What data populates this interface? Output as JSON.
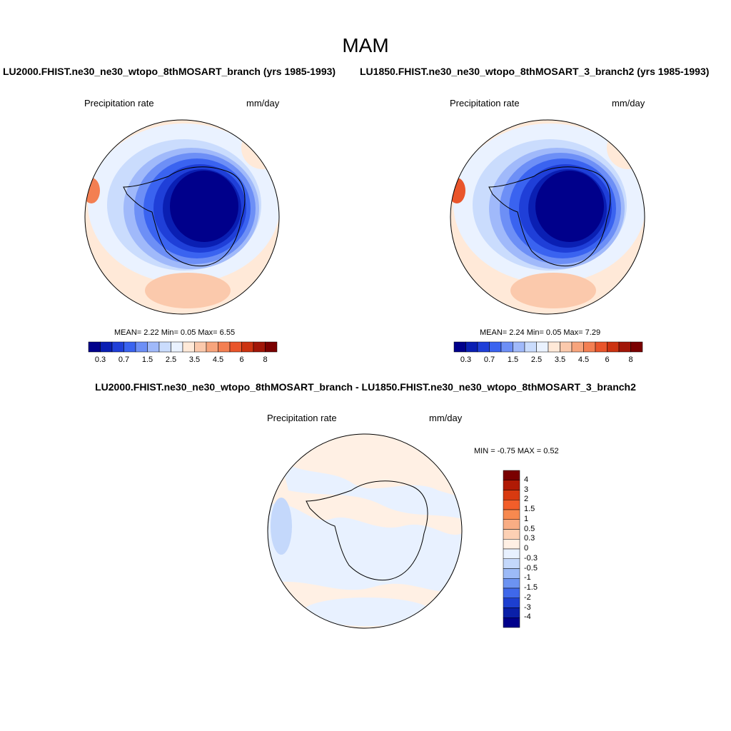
{
  "figure": {
    "title": "MAM"
  },
  "panel1": {
    "case": "LU2000.FHIST.ne30_ne30_wtopo_8thMOSART_branch (yrs 1985-1993)",
    "left_label": "Precipitation rate",
    "right_label": "mm/day",
    "stats": "MEAN=   2.22  Min=   0.05  Max=   6.55",
    "colorbar_ticks": [
      "0.3",
      "0.7",
      "1.5",
      "2.5",
      "3.5",
      "4.5",
      "6",
      "8"
    ],
    "colors": [
      "#00008b",
      "#0a1fb3",
      "#1f3fd8",
      "#3a63f0",
      "#6d8ff6",
      "#a0b9fa",
      "#cadcfd",
      "#eaf2ff",
      "#ffe9d8",
      "#fbc9ac",
      "#f7a47c",
      "#f37f52",
      "#e9552b",
      "#cc3311",
      "#a11608",
      "#7a0000"
    ]
  },
  "panel2": {
    "case": "LU1850.FHIST.ne30_ne30_wtopo_8thMOSART_3_branch2 (yrs 1985-1993)",
    "left_label": "Precipitation rate",
    "right_label": "mm/day",
    "stats": "MEAN=   2.24  Min=   0.05  Max=   7.29",
    "colorbar_ticks": [
      "0.3",
      "0.7",
      "1.5",
      "2.5",
      "3.5",
      "4.5",
      "6",
      "8"
    ]
  },
  "panel3": {
    "case": "LU2000.FHIST.ne30_ne30_wtopo_8thMOSART_branch - LU1850.FHIST.ne30_ne30_wtopo_8thMOSART_3_branch2",
    "left_label": "Precipitation rate",
    "right_label": "mm/day",
    "stats": "MIN =  -0.75 MAX =   0.52",
    "colorbar_ticks": [
      "4",
      "3",
      "2",
      "1.5",
      "1",
      "0.5",
      "0.3",
      "0",
      "-0.3",
      "-0.5",
      "-1",
      "-1.5",
      "-2",
      "-3",
      "-4"
    ],
    "colors": [
      "#7a0000",
      "#b01a05",
      "#d83a10",
      "#f25e2a",
      "#f7894f",
      "#f9ad84",
      "#fcd0b4",
      "#fff0e4",
      "#e8f1ff",
      "#c4d8fb",
      "#9cbaf7",
      "#6c93f2",
      "#3f68ea",
      "#1d3fd0",
      "#0a1fa8",
      "#00008b"
    ]
  }
}
